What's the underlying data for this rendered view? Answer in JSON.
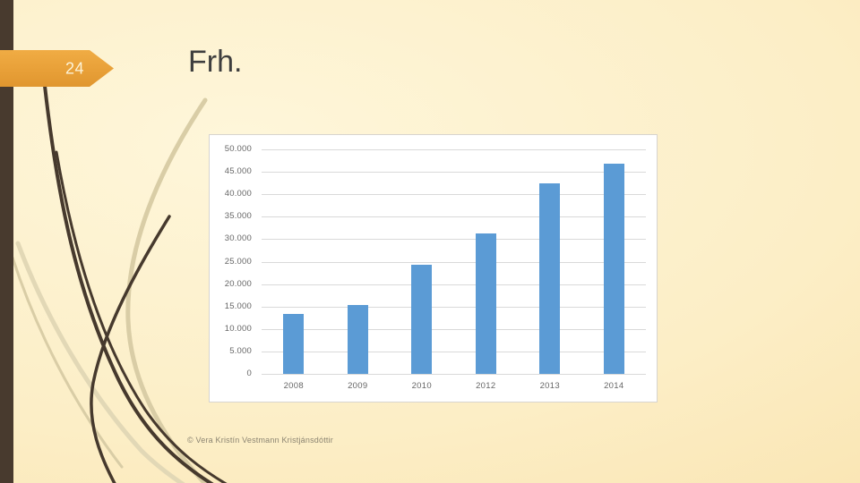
{
  "slide": {
    "page_number": "24",
    "title": "Frh.",
    "footer": "© Vera Kristín Vestmann Kristjánsdóttir"
  },
  "colors": {
    "background_center": "#FEF6DA",
    "background_edge": "#F9E2AC",
    "accent_bar_brown": "#483A2E",
    "badge_orange": "#E8A038",
    "badge_text": "#FCF3D8",
    "title_text": "#3E3E3E",
    "chart_background": "#FFFFFF",
    "chart_border": "#D7D4CF",
    "gridline": "#D9D9D9",
    "axis_text": "#666666",
    "bar_fill": "#5B9BD5",
    "footer_text": "#8B8471",
    "reed_dark": "#46392D",
    "reed_light": "#D9CDA6"
  },
  "chart_data": {
    "type": "bar",
    "title": "",
    "xlabel": "",
    "ylabel": "",
    "categories": [
      "2008",
      "2009",
      "2010",
      "2012",
      "2013",
      "2014"
    ],
    "values": [
      13300,
      15300,
      24400,
      31300,
      42500,
      46800
    ],
    "series_color": "#5B9BD5",
    "ylim": [
      0,
      50000
    ],
    "ytick_step": 5000,
    "ytick_labels": [
      "0",
      "5.000",
      "10.000",
      "15.000",
      "20.000",
      "25.000",
      "30.000",
      "35.000",
      "40.000",
      "45.000",
      "50.000"
    ],
    "grid": true,
    "legend": false
  }
}
